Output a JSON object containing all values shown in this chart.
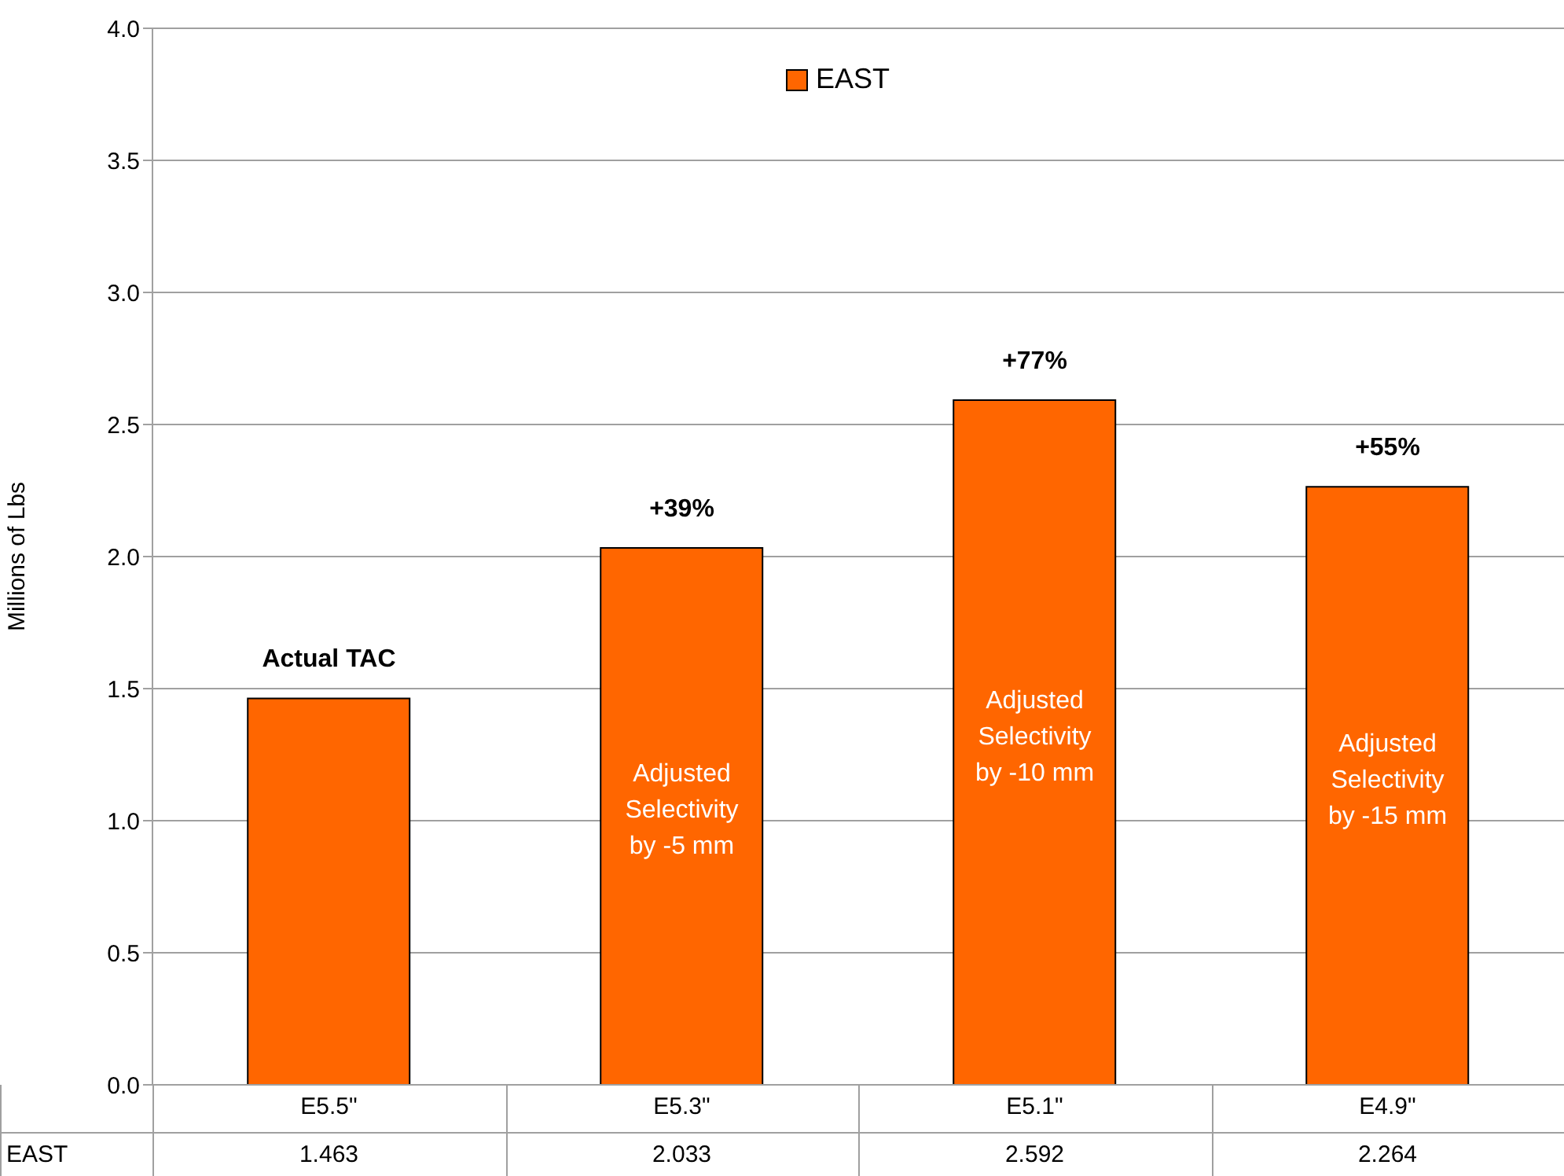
{
  "chart_data": {
    "type": "bar",
    "ylabel": "Millions of Lbs",
    "categories": [
      "E5.5\"",
      "E5.3\"",
      "E5.1\"",
      "E4.9\""
    ],
    "series": [
      {
        "name": "EAST",
        "color": "#ff6600",
        "values": [
          1.463,
          2.033,
          2.592,
          2.264
        ]
      }
    ],
    "ylim": [
      0,
      4
    ],
    "yticks": [
      {
        "value": 0,
        "label": "0.0"
      },
      {
        "value": 0.5,
        "label": "0.5"
      },
      {
        "value": 1,
        "label": "1.0"
      },
      {
        "value": 1.5,
        "label": "1.5"
      },
      {
        "value": 2,
        "label": "2.0"
      },
      {
        "value": 2.5,
        "label": "2.5"
      },
      {
        "value": 3,
        "label": "3.0"
      },
      {
        "value": 3.5,
        "label": "3.5"
      },
      {
        "value": 4,
        "label": "4.0"
      }
    ],
    "grid": "y",
    "legend": "top",
    "data_labels": true,
    "annotations": [
      {
        "text": "Actual TAC",
        "x": "E5.5\"",
        "y": 1.463
      },
      {
        "text": "+39%",
        "x": "E5.3\"",
        "y": 2.033
      },
      {
        "text": "+77%",
        "x": "E5.1\"",
        "y": 2.592
      },
      {
        "text": "+55%",
        "x": "E4.9\"",
        "y": 2.264
      },
      "Adjusted Selectivity by -5 mm",
      "Adjusted Selectivity by -10 mm",
      "Adjusted Selectivity by -15 mm"
    ]
  }
}
